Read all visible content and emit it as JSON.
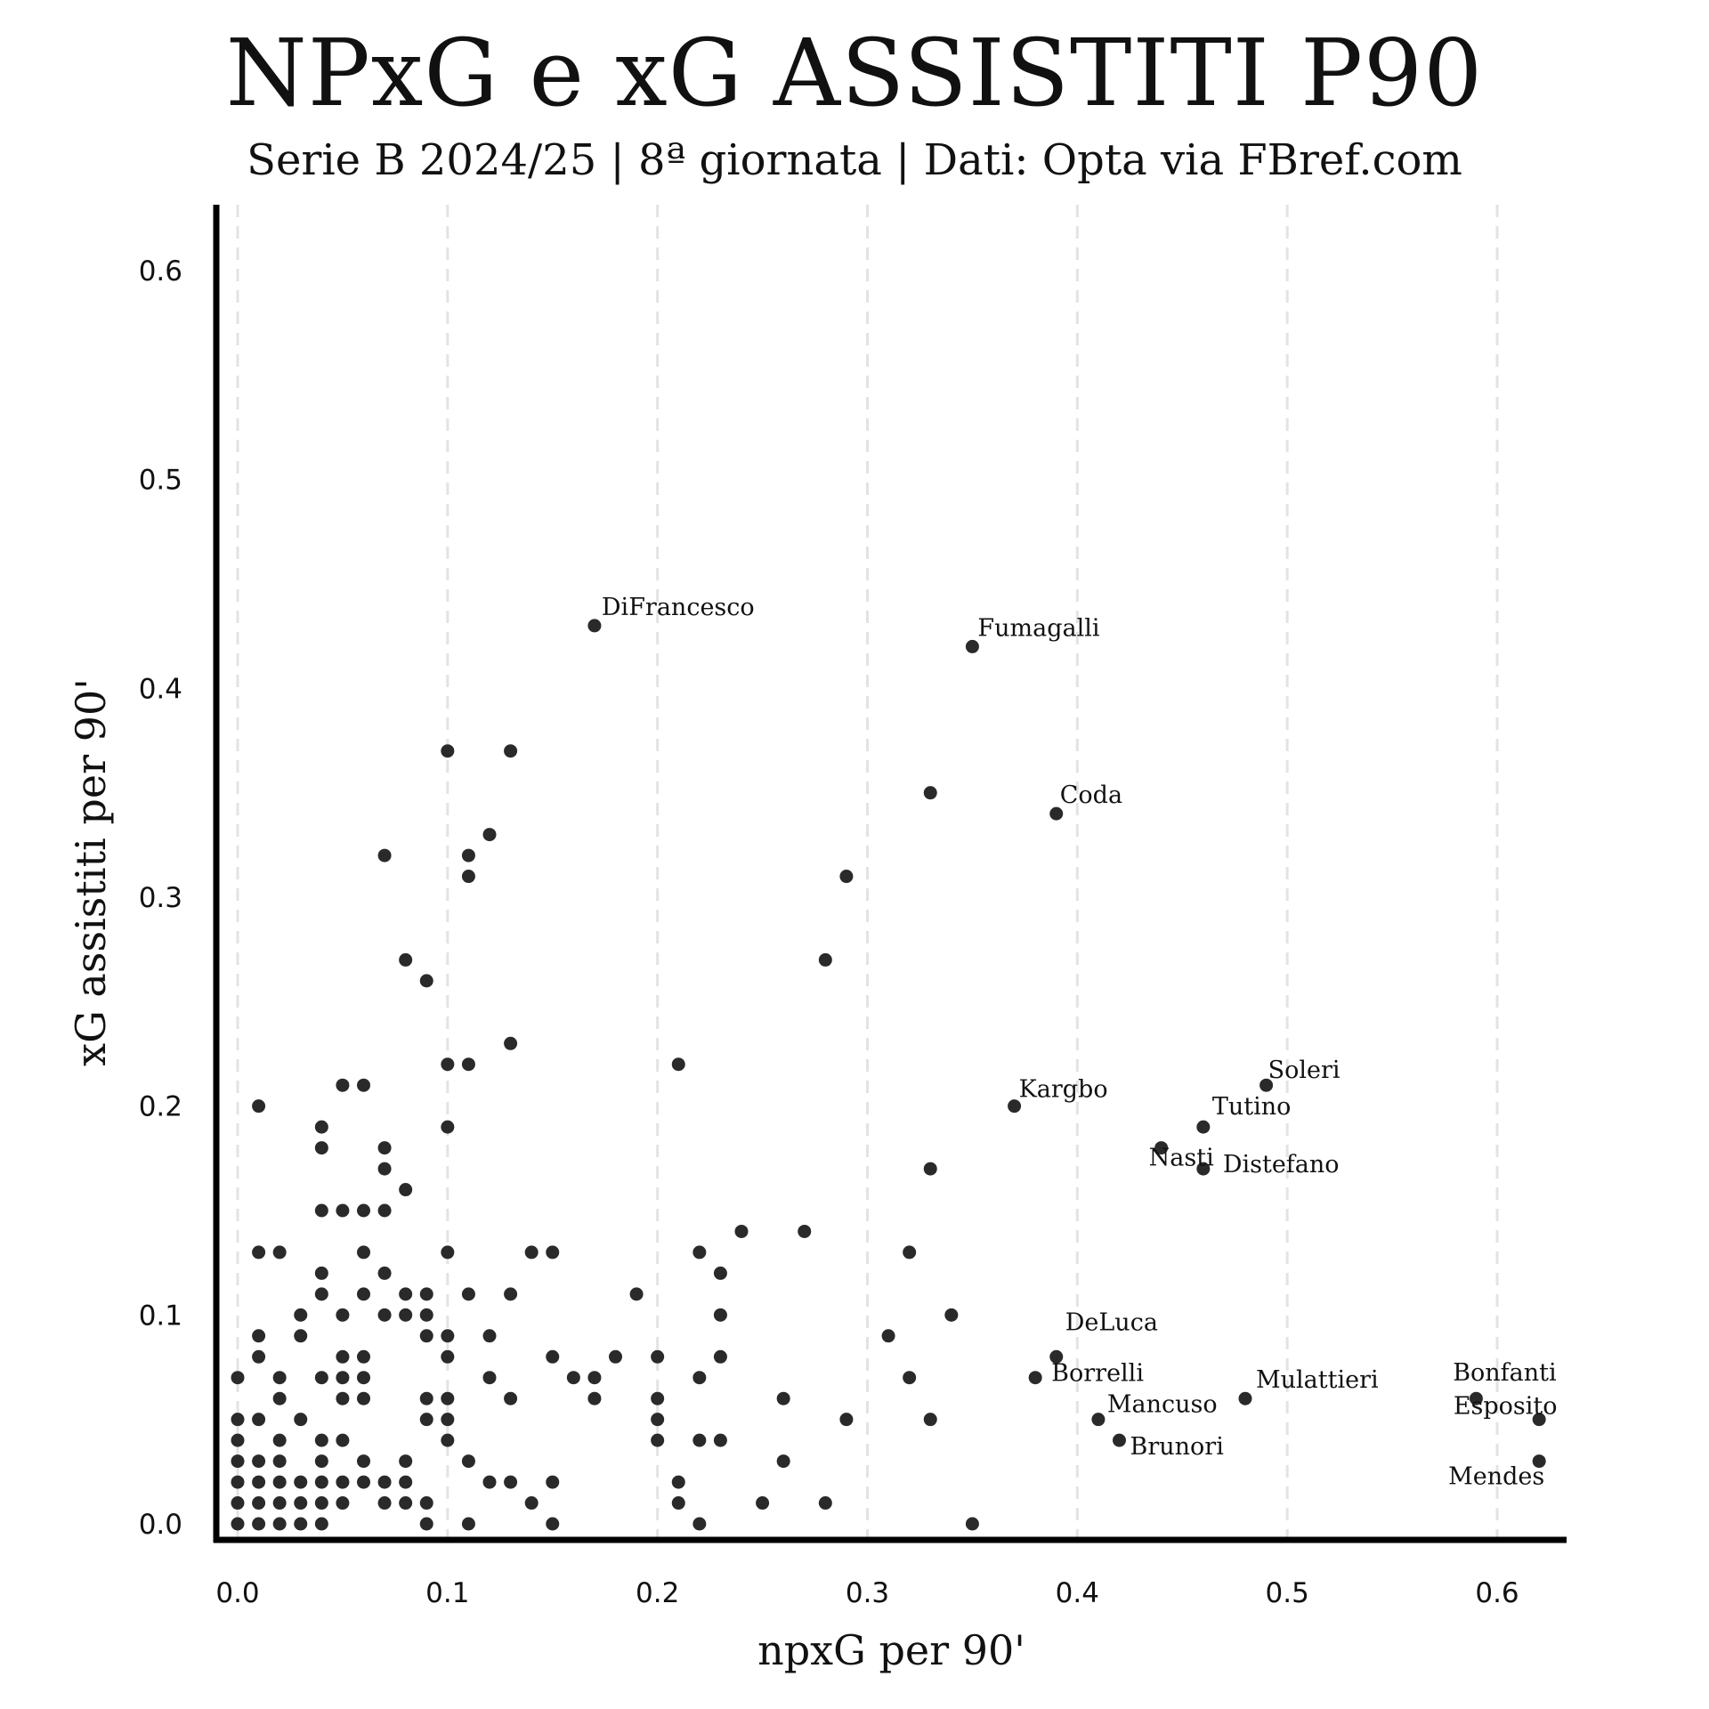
{
  "title": "NPxG e xG ASSISTITI P90",
  "subtitle": "Serie B 2024/25 | 8ª giornata | Dati: Opta via FBref.com",
  "chart_data": {
    "type": "scatter",
    "title": "NPxG e xG ASSISTITI P90",
    "subtitle": "Serie B 2024/25 | 8ª giornata | Dati: Opta via FBref.com",
    "xlabel": "npxG per 90'",
    "ylabel": "xG assistiti per 90'",
    "xlim": [
      -0.01,
      0.635
    ],
    "ylim": [
      -0.01,
      0.635
    ],
    "x_ticks": [
      "0.0",
      "0.1",
      "0.2",
      "0.3",
      "0.4",
      "0.5",
      "0.6"
    ],
    "y_ticks": [
      "0.0",
      "0.1",
      "0.2",
      "0.3",
      "0.4",
      "0.5",
      "0.6"
    ],
    "grid": "vertical dashed",
    "marker_color": "#2a2a2a",
    "labeled_points": [
      {
        "label": "DiFrancesco",
        "x": 0.17,
        "y": 0.43
      },
      {
        "label": "Fumagalli",
        "x": 0.35,
        "y": 0.42
      },
      {
        "label": "Coda",
        "x": 0.39,
        "y": 0.34
      },
      {
        "label": "Kargbo",
        "x": 0.37,
        "y": 0.2
      },
      {
        "label": "Soleri",
        "x": 0.49,
        "y": 0.21
      },
      {
        "label": "Tutino",
        "x": 0.46,
        "y": 0.19
      },
      {
        "label": "Nasti",
        "x": 0.44,
        "y": 0.18
      },
      {
        "label": "Distefano",
        "x": 0.46,
        "y": 0.17
      },
      {
        "label": "DeLuca",
        "x": 0.39,
        "y": 0.08
      },
      {
        "label": "Borrelli",
        "x": 0.38,
        "y": 0.07
      },
      {
        "label": "Mancuso",
        "x": 0.41,
        "y": 0.05
      },
      {
        "label": "Brunori",
        "x": 0.42,
        "y": 0.04
      },
      {
        "label": "Mulattieri",
        "x": 0.48,
        "y": 0.06
      },
      {
        "label": "Bonfanti",
        "x": 0.59,
        "y": 0.06
      },
      {
        "label": "Esposito",
        "x": 0.62,
        "y": 0.05
      },
      {
        "label": "Mendes",
        "x": 0.62,
        "y": 0.03
      }
    ],
    "points": [
      [
        0.1,
        0.37
      ],
      [
        0.13,
        0.37
      ],
      [
        0.33,
        0.35
      ],
      [
        0.12,
        0.33
      ],
      [
        0.07,
        0.32
      ],
      [
        0.11,
        0.32
      ],
      [
        0.11,
        0.31
      ],
      [
        0.29,
        0.31
      ],
      [
        0.08,
        0.27
      ],
      [
        0.28,
        0.27
      ],
      [
        0.09,
        0.26
      ],
      [
        0.13,
        0.23
      ],
      [
        0.1,
        0.22
      ],
      [
        0.11,
        0.22
      ],
      [
        0.21,
        0.22
      ],
      [
        0.05,
        0.21
      ],
      [
        0.06,
        0.21
      ],
      [
        0.01,
        0.2
      ],
      [
        0.04,
        0.19
      ],
      [
        0.1,
        0.19
      ],
      [
        0.04,
        0.18
      ],
      [
        0.07,
        0.18
      ],
      [
        0.07,
        0.17
      ],
      [
        0.33,
        0.17
      ],
      [
        0.08,
        0.16
      ],
      [
        0.04,
        0.15
      ],
      [
        0.05,
        0.15
      ],
      [
        0.06,
        0.15
      ],
      [
        0.07,
        0.15
      ],
      [
        0.24,
        0.14
      ],
      [
        0.27,
        0.14
      ],
      [
        0.01,
        0.13
      ],
      [
        0.02,
        0.13
      ],
      [
        0.06,
        0.13
      ],
      [
        0.1,
        0.13
      ],
      [
        0.14,
        0.13
      ],
      [
        0.15,
        0.13
      ],
      [
        0.22,
        0.13
      ],
      [
        0.32,
        0.13
      ],
      [
        0.04,
        0.12
      ],
      [
        0.07,
        0.12
      ],
      [
        0.23,
        0.12
      ],
      [
        0.04,
        0.11
      ],
      [
        0.06,
        0.11
      ],
      [
        0.08,
        0.11
      ],
      [
        0.09,
        0.11
      ],
      [
        0.11,
        0.11
      ],
      [
        0.13,
        0.11
      ],
      [
        0.19,
        0.11
      ],
      [
        0.03,
        0.1
      ],
      [
        0.05,
        0.1
      ],
      [
        0.07,
        0.1
      ],
      [
        0.08,
        0.1
      ],
      [
        0.09,
        0.1
      ],
      [
        0.23,
        0.1
      ],
      [
        0.34,
        0.1
      ],
      [
        0.01,
        0.09
      ],
      [
        0.03,
        0.09
      ],
      [
        0.09,
        0.09
      ],
      [
        0.1,
        0.09
      ],
      [
        0.12,
        0.09
      ],
      [
        0.31,
        0.09
      ],
      [
        0.01,
        0.08
      ],
      [
        0.05,
        0.08
      ],
      [
        0.06,
        0.08
      ],
      [
        0.1,
        0.08
      ],
      [
        0.15,
        0.08
      ],
      [
        0.18,
        0.08
      ],
      [
        0.2,
        0.08
      ],
      [
        0.23,
        0.08
      ],
      [
        0.0,
        0.07
      ],
      [
        0.02,
        0.07
      ],
      [
        0.04,
        0.07
      ],
      [
        0.05,
        0.07
      ],
      [
        0.06,
        0.07
      ],
      [
        0.12,
        0.07
      ],
      [
        0.16,
        0.07
      ],
      [
        0.17,
        0.07
      ],
      [
        0.22,
        0.07
      ],
      [
        0.32,
        0.07
      ],
      [
        0.02,
        0.06
      ],
      [
        0.05,
        0.06
      ],
      [
        0.06,
        0.06
      ],
      [
        0.09,
        0.06
      ],
      [
        0.1,
        0.06
      ],
      [
        0.13,
        0.06
      ],
      [
        0.17,
        0.06
      ],
      [
        0.2,
        0.06
      ],
      [
        0.26,
        0.06
      ],
      [
        0.0,
        0.05
      ],
      [
        0.01,
        0.05
      ],
      [
        0.03,
        0.05
      ],
      [
        0.09,
        0.05
      ],
      [
        0.1,
        0.05
      ],
      [
        0.2,
        0.05
      ],
      [
        0.29,
        0.05
      ],
      [
        0.33,
        0.05
      ],
      [
        0.0,
        0.04
      ],
      [
        0.02,
        0.04
      ],
      [
        0.04,
        0.04
      ],
      [
        0.05,
        0.04
      ],
      [
        0.1,
        0.04
      ],
      [
        0.2,
        0.04
      ],
      [
        0.22,
        0.04
      ],
      [
        0.23,
        0.04
      ],
      [
        0.0,
        0.03
      ],
      [
        0.01,
        0.03
      ],
      [
        0.02,
        0.03
      ],
      [
        0.04,
        0.03
      ],
      [
        0.06,
        0.03
      ],
      [
        0.08,
        0.03
      ],
      [
        0.11,
        0.03
      ],
      [
        0.26,
        0.03
      ],
      [
        0.0,
        0.02
      ],
      [
        0.01,
        0.02
      ],
      [
        0.02,
        0.02
      ],
      [
        0.03,
        0.02
      ],
      [
        0.04,
        0.02
      ],
      [
        0.05,
        0.02
      ],
      [
        0.06,
        0.02
      ],
      [
        0.07,
        0.02
      ],
      [
        0.08,
        0.02
      ],
      [
        0.12,
        0.02
      ],
      [
        0.13,
        0.02
      ],
      [
        0.15,
        0.02
      ],
      [
        0.21,
        0.02
      ],
      [
        0.0,
        0.01
      ],
      [
        0.01,
        0.01
      ],
      [
        0.02,
        0.01
      ],
      [
        0.03,
        0.01
      ],
      [
        0.04,
        0.01
      ],
      [
        0.05,
        0.01
      ],
      [
        0.07,
        0.01
      ],
      [
        0.08,
        0.01
      ],
      [
        0.09,
        0.01
      ],
      [
        0.14,
        0.01
      ],
      [
        0.21,
        0.01
      ],
      [
        0.25,
        0.01
      ],
      [
        0.28,
        0.01
      ],
      [
        0.0,
        0.0
      ],
      [
        0.01,
        0.0
      ],
      [
        0.02,
        0.0
      ],
      [
        0.03,
        0.0
      ],
      [
        0.04,
        0.0
      ],
      [
        0.09,
        0.0
      ],
      [
        0.11,
        0.0
      ],
      [
        0.15,
        0.0
      ],
      [
        0.22,
        0.0
      ],
      [
        0.35,
        0.0
      ]
    ]
  }
}
